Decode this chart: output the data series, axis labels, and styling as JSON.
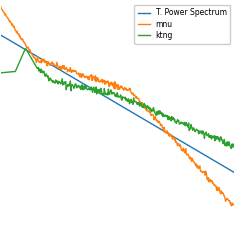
{
  "legend_labels": [
    "T. Power Spectrum",
    "mnu",
    "ktng"
  ],
  "legend_colors": [
    "#1f77b4",
    "#ff7f0e",
    "#2ca02c"
  ],
  "background_color": "#ffffff",
  "figsize": [
    2.35,
    2.35
  ],
  "dpi": 100
}
